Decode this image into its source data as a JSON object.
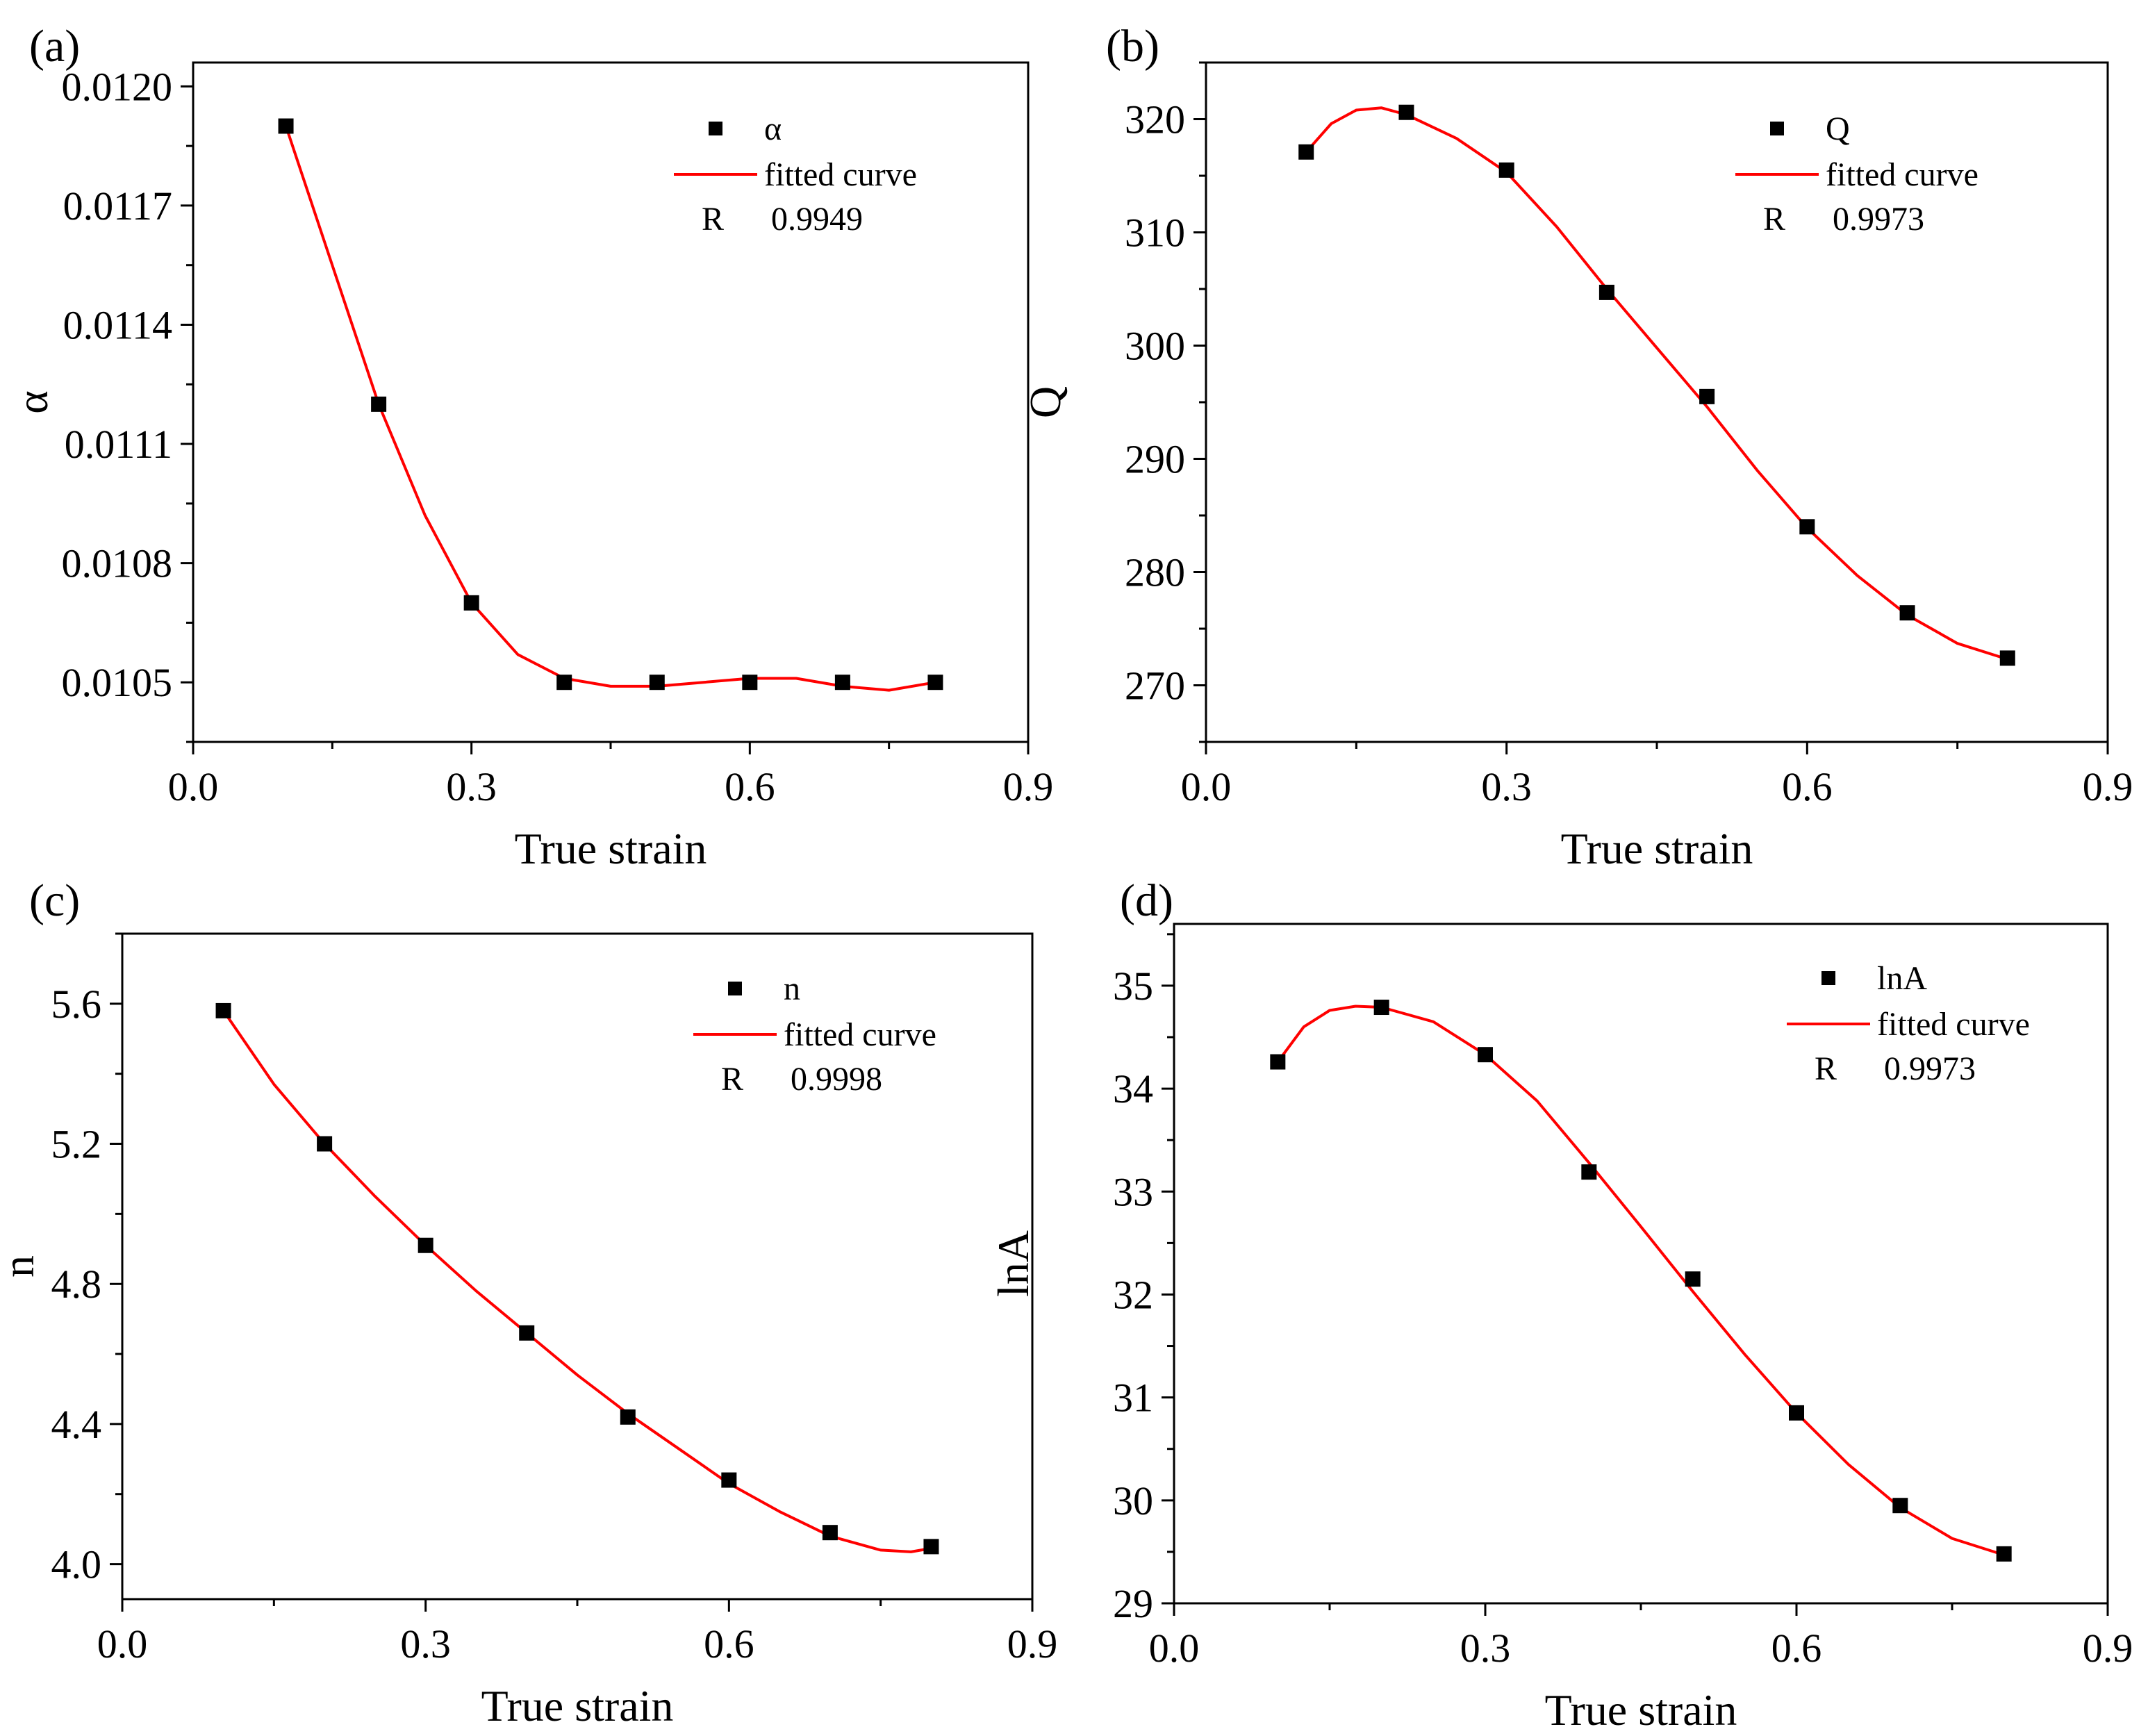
{
  "figure": {
    "background": "#ffffff",
    "axis_color": "#000000",
    "marker_color": "#000000",
    "fit_color": "#ff0000"
  },
  "chart_data": [
    {
      "type": "scatter",
      "panel_label": "(a)",
      "xlabel": "True strain",
      "ylabel": "α",
      "xlim": [
        0.0,
        0.9
      ],
      "ylim": [
        0.01035,
        0.01206
      ],
      "xticks": [
        0.0,
        0.3,
        0.6,
        0.9
      ],
      "xtick_labels": [
        "0.0",
        "0.3",
        "0.6",
        "0.9"
      ],
      "yticks": [
        0.0105,
        0.0108,
        0.0111,
        0.0114,
        0.0117,
        0.012
      ],
      "ytick_labels": [
        "0.0105",
        "0.0108",
        "0.0111",
        "0.0114",
        "0.0117",
        "0.0120"
      ],
      "series": [
        {
          "name": "α",
          "style": "markers",
          "x": [
            0.1,
            0.2,
            0.3,
            0.4,
            0.5,
            0.6,
            0.7,
            0.8
          ],
          "y": [
            0.0119,
            0.0112,
            0.0107,
            0.0105,
            0.0105,
            0.0105,
            0.0105,
            0.0105
          ]
        },
        {
          "name": "fitted curve",
          "style": "line",
          "x": [
            0.1,
            0.15,
            0.2,
            0.25,
            0.3,
            0.35,
            0.4,
            0.45,
            0.5,
            0.55,
            0.6,
            0.65,
            0.7,
            0.75,
            0.8
          ],
          "y": [
            0.0119,
            0.01155,
            0.0112,
            0.01092,
            0.0107,
            0.01057,
            0.01051,
            0.01049,
            0.01049,
            0.0105,
            0.01051,
            0.01051,
            0.01049,
            0.01048,
            0.0105
          ]
        }
      ],
      "legend": {
        "marker_label": "α",
        "line_label": "fitted curve",
        "r_label": "R",
        "r_value": "0.9949",
        "position": "top-right"
      }
    },
    {
      "type": "scatter",
      "panel_label": "(b)",
      "xlabel": "True strain",
      "ylabel": "Q",
      "xlim": [
        0.0,
        0.9
      ],
      "ylim": [
        265,
        325
      ],
      "xticks": [
        0.0,
        0.3,
        0.6,
        0.9
      ],
      "xtick_labels": [
        "0.0",
        "0.3",
        "0.6",
        "0.9"
      ],
      "yticks": [
        270,
        280,
        290,
        300,
        310,
        320
      ],
      "ytick_labels": [
        "270",
        "280",
        "290",
        "300",
        "310",
        "320"
      ],
      "series": [
        {
          "name": "Q",
          "style": "markers",
          "x": [
            0.1,
            0.2,
            0.3,
            0.4,
            0.5,
            0.6,
            0.7,
            0.8
          ],
          "y": [
            317.1,
            320.6,
            315.5,
            304.7,
            295.5,
            284.0,
            276.4,
            272.4
          ]
        },
        {
          "name": "fitted curve",
          "style": "line",
          "x": [
            0.1,
            0.125,
            0.15,
            0.175,
            0.2,
            0.25,
            0.3,
            0.35,
            0.4,
            0.45,
            0.5,
            0.55,
            0.6,
            0.65,
            0.7,
            0.75,
            0.8
          ],
          "y": [
            317.1,
            319.6,
            320.8,
            321.0,
            320.4,
            318.3,
            315.3,
            310.5,
            305.0,
            299.8,
            294.6,
            289.0,
            283.9,
            279.7,
            276.2,
            273.7,
            272.3
          ]
        }
      ],
      "legend": {
        "marker_label": "Q",
        "line_label": "fitted curve",
        "r_label": "R",
        "r_value": "0.9973",
        "position": "top-right"
      }
    },
    {
      "type": "scatter",
      "panel_label": "(c)",
      "xlabel": "True strain",
      "ylabel": "n",
      "xlim": [
        0.0,
        0.9
      ],
      "ylim": [
        3.9,
        5.8
      ],
      "xticks": [
        0.0,
        0.3,
        0.6,
        0.9
      ],
      "xtick_labels": [
        "0.0",
        "0.3",
        "0.6",
        "0.9"
      ],
      "yticks": [
        4.0,
        4.4,
        4.8,
        5.2,
        5.6
      ],
      "ytick_labels": [
        "4.0",
        "4.4",
        "4.8",
        "5.2",
        "5.6"
      ],
      "series": [
        {
          "name": "n",
          "style": "markers",
          "x": [
            0.1,
            0.2,
            0.3,
            0.4,
            0.5,
            0.6,
            0.7,
            0.8
          ],
          "y": [
            5.58,
            5.2,
            4.91,
            4.66,
            4.42,
            4.24,
            4.09,
            4.05
          ]
        },
        {
          "name": "fitted curve",
          "style": "line",
          "x": [
            0.1,
            0.15,
            0.2,
            0.25,
            0.3,
            0.35,
            0.4,
            0.45,
            0.5,
            0.55,
            0.6,
            0.65,
            0.7,
            0.75,
            0.78,
            0.8
          ],
          "y": [
            5.58,
            5.37,
            5.2,
            5.05,
            4.91,
            4.78,
            4.66,
            4.54,
            4.43,
            4.33,
            4.23,
            4.15,
            4.08,
            4.04,
            4.035,
            4.045
          ]
        }
      ],
      "legend": {
        "marker_label": "n",
        "line_label": "fitted curve",
        "r_label": "R",
        "r_value": "0.9998",
        "position": "top-right"
      }
    },
    {
      "type": "scatter",
      "panel_label": "(d)",
      "xlabel": "True strain",
      "ylabel": "lnA",
      "xlim": [
        0.0,
        0.9
      ],
      "ylim": [
        29.0,
        35.6
      ],
      "xticks": [
        0.0,
        0.3,
        0.6,
        0.9
      ],
      "xtick_labels": [
        "0.0",
        "0.3",
        "0.6",
        "0.9"
      ],
      "yticks": [
        29,
        30,
        31,
        32,
        33,
        34,
        35
      ],
      "ytick_labels": [
        "29",
        "30",
        "31",
        "32",
        "33",
        "34",
        "35"
      ],
      "series": [
        {
          "name": "lnA",
          "style": "markers",
          "x": [
            0.1,
            0.2,
            0.3,
            0.4,
            0.5,
            0.6,
            0.7,
            0.8
          ],
          "y": [
            34.26,
            34.79,
            34.33,
            33.19,
            32.15,
            30.85,
            29.95,
            29.48
          ]
        },
        {
          "name": "fitted curve",
          "style": "line",
          "x": [
            0.1,
            0.125,
            0.15,
            0.175,
            0.2,
            0.25,
            0.3,
            0.35,
            0.4,
            0.45,
            0.5,
            0.55,
            0.6,
            0.65,
            0.7,
            0.75,
            0.8
          ],
          "y": [
            34.26,
            34.6,
            34.76,
            34.8,
            34.79,
            34.65,
            34.33,
            33.88,
            33.28,
            32.66,
            32.03,
            31.42,
            30.85,
            30.35,
            29.93,
            29.63,
            29.47
          ]
        }
      ],
      "legend": {
        "marker_label": "lnA",
        "line_label": "fitted curve",
        "r_label": "R",
        "r_value": "0.9973",
        "position": "top-right"
      }
    }
  ]
}
